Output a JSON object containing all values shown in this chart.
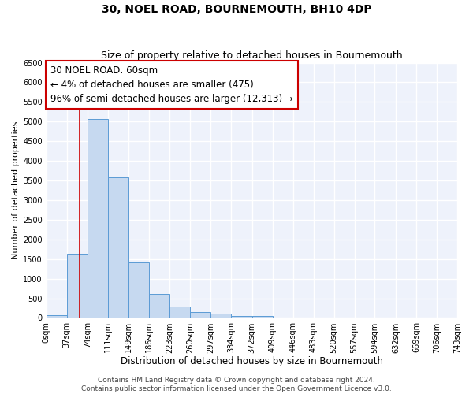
{
  "title": "30, NOEL ROAD, BOURNEMOUTH, BH10 4DP",
  "subtitle": "Size of property relative to detached houses in Bournemouth",
  "xlabel": "Distribution of detached houses by size in Bournemouth",
  "ylabel": "Number of detached properties",
  "bin_edges": [
    0,
    37,
    74,
    111,
    149,
    186,
    223,
    260,
    297,
    334,
    372,
    409,
    446,
    483,
    520,
    557,
    594,
    632,
    669,
    706,
    743
  ],
  "bin_counts": [
    60,
    1630,
    5060,
    3580,
    1420,
    610,
    300,
    150,
    100,
    50,
    50,
    0,
    0,
    0,
    0,
    0,
    0,
    0,
    0,
    0
  ],
  "bar_facecolor": "#c6d9f0",
  "bar_edgecolor": "#5b9bd5",
  "property_line_x": 60,
  "property_line_color": "#cc0000",
  "annotation_text": "30 NOEL ROAD: 60sqm\n← 4% of detached houses are smaller (475)\n96% of semi-detached houses are larger (12,313) →",
  "annotation_box_edgecolor": "#cc0000",
  "annotation_box_facecolor": "white",
  "ylim": [
    0,
    6500
  ],
  "yticks": [
    0,
    500,
    1000,
    1500,
    2000,
    2500,
    3000,
    3500,
    4000,
    4500,
    5000,
    5500,
    6000,
    6500
  ],
  "background_color": "#eef2fb",
  "grid_color": "#ffffff",
  "footer_line1": "Contains HM Land Registry data © Crown copyright and database right 2024.",
  "footer_line2": "Contains public sector information licensed under the Open Government Licence v3.0.",
  "title_fontsize": 10,
  "subtitle_fontsize": 9,
  "xlabel_fontsize": 8.5,
  "ylabel_fontsize": 8,
  "tick_fontsize": 7,
  "annotation_fontsize": 8.5,
  "footer_fontsize": 6.5
}
